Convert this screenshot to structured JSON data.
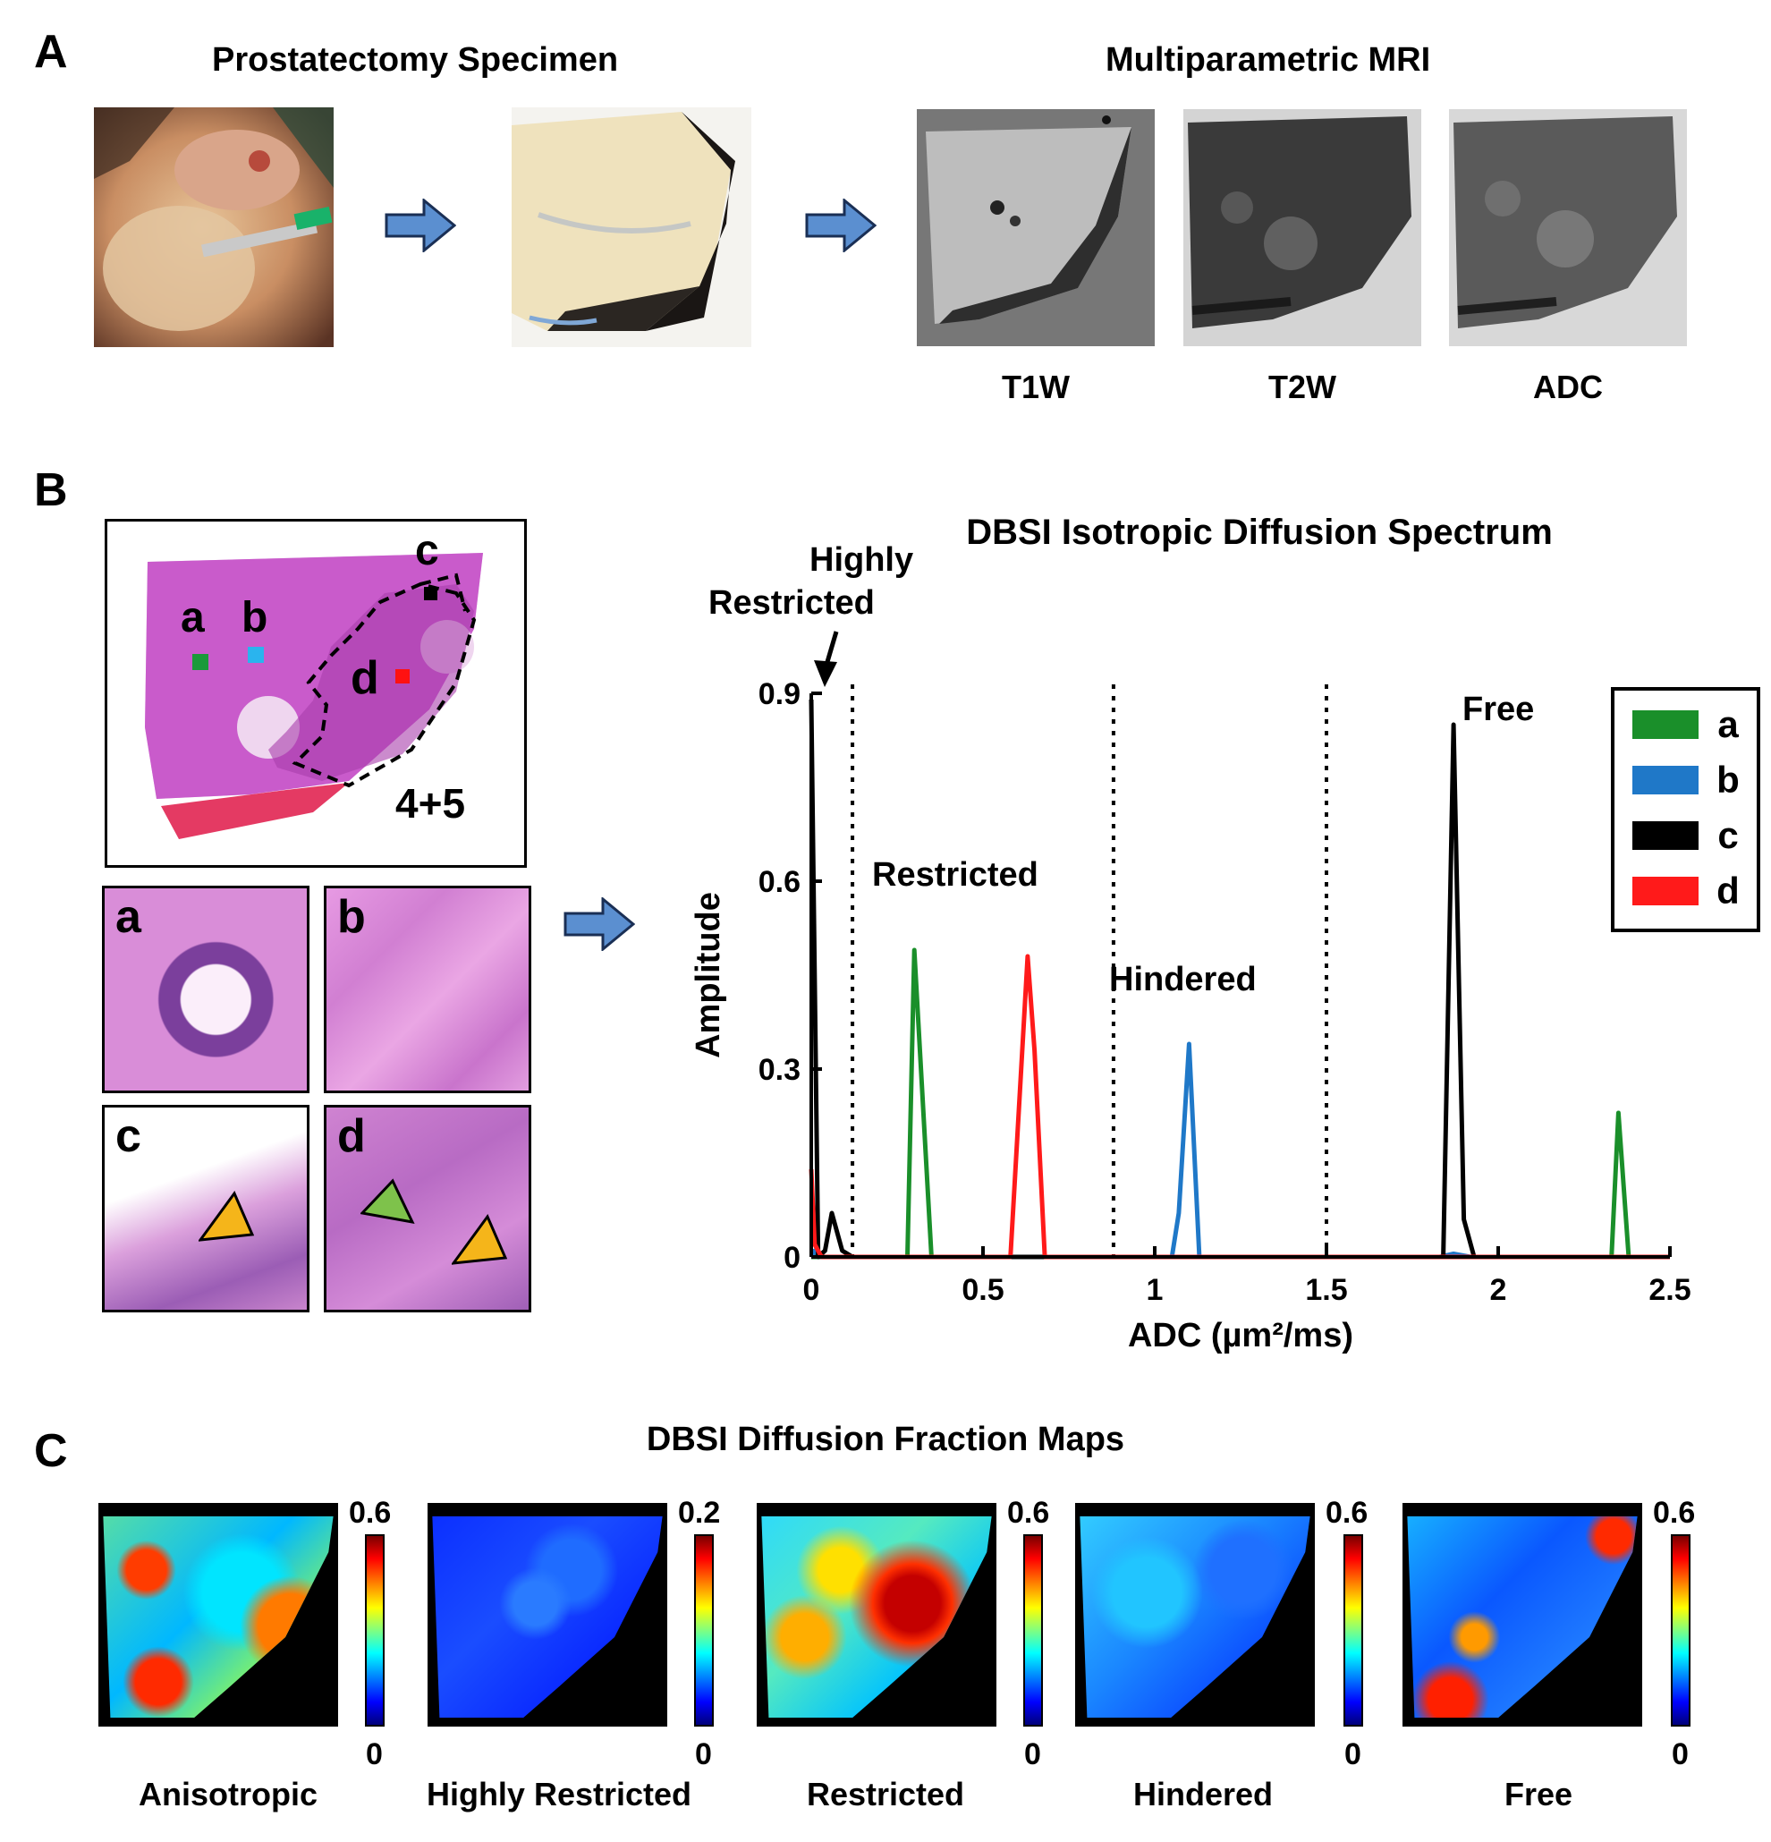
{
  "panelA": {
    "letter": "A",
    "title_specimen": "Prostatectomy Specimen",
    "title_mri": "Multiparametric MRI",
    "mri_labels": [
      "T1W",
      "T2W",
      "ADC"
    ]
  },
  "panelB": {
    "letter": "B",
    "histology_score": "4+5",
    "roi_labels": [
      "a",
      "b",
      "c",
      "d"
    ],
    "roi_colors": [
      "#1a9a3a",
      "#2ab4ee",
      "#000000",
      "#ff1111"
    ],
    "closeup_labels": [
      "a",
      "b",
      "c",
      "d"
    ]
  },
  "panelC": {
    "letter": "C",
    "title": "DBSI Diffusion Fraction Maps",
    "maps": [
      {
        "label": "Anisotropic",
        "max": "0.6",
        "min": "0"
      },
      {
        "label": "Highly Restricted",
        "max": "0.2",
        "min": "0"
      },
      {
        "label": "Restricted",
        "max": "0.6",
        "min": "0"
      },
      {
        "label": "Hindered",
        "max": "0.6",
        "min": "0"
      },
      {
        "label": "Free",
        "max": "0.6",
        "min": "0"
      }
    ]
  },
  "chart_data": {
    "type": "line",
    "title": "DBSI Isotropic Diffusion Spectrum",
    "xlabel": "ADC (µm²/ms)",
    "ylabel": "Amplitude",
    "xlim": [
      0,
      2.5
    ],
    "ylim": [
      0,
      0.9
    ],
    "xticks": [
      "0",
      "0.5",
      "1",
      "1.5",
      "2",
      "2.5"
    ],
    "yticks": [
      "0",
      "0.3",
      "0.6",
      "0.9"
    ],
    "region_boundaries": [
      0.12,
      0.88,
      1.5
    ],
    "region_labels": [
      "Highly Restricted",
      "Restricted",
      "Hindered",
      "Free"
    ],
    "legend": [
      "a",
      "b",
      "c",
      "d"
    ],
    "legend_position": "top-right",
    "series": [
      {
        "name": "a",
        "color": "#1a8f2a",
        "x": [
          0,
          0.28,
          0.3,
          0.35,
          2.33,
          2.35,
          2.38,
          2.5
        ],
        "y": [
          0,
          0,
          0.49,
          0,
          0,
          0.23,
          0,
          0
        ]
      },
      {
        "name": "b",
        "color": "#1f78c8",
        "x": [
          0,
          0.01,
          0.03,
          0.08,
          1.05,
          1.07,
          1.1,
          1.13,
          1.83,
          1.87,
          1.92,
          2.5
        ],
        "y": [
          0,
          0.01,
          0,
          0,
          0,
          0.07,
          0.34,
          0,
          0,
          0.005,
          0,
          0
        ]
      },
      {
        "name": "c",
        "color": "#000000",
        "x": [
          0,
          0.02,
          0.04,
          0.06,
          0.09,
          0.12,
          1.84,
          1.87,
          1.9,
          1.93,
          2.5
        ],
        "y": [
          0.89,
          0,
          0.01,
          0.07,
          0.01,
          0,
          0,
          0.85,
          0.06,
          0,
          0
        ]
      },
      {
        "name": "d",
        "color": "#ff1a1a",
        "x": [
          0,
          0.01,
          0.03,
          0.58,
          0.63,
          0.65,
          0.68,
          2.5
        ],
        "y": [
          0.14,
          0.02,
          0,
          0,
          0.48,
          0.33,
          0,
          0
        ]
      }
    ]
  }
}
